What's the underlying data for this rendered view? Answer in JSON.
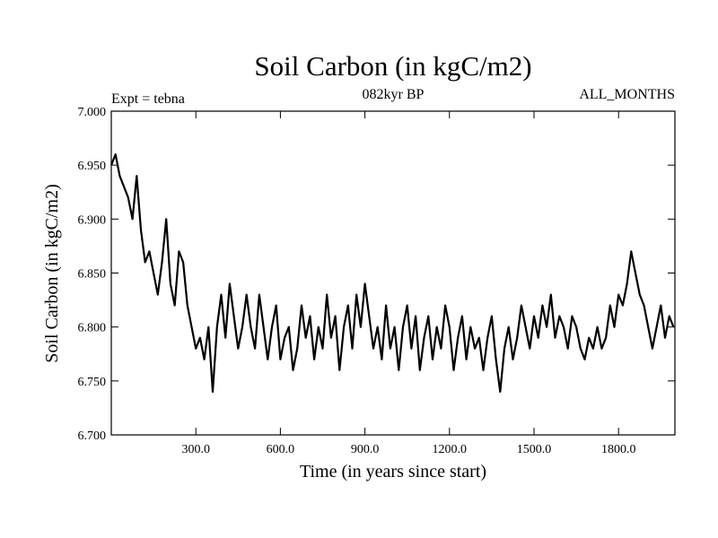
{
  "chart_data": {
    "type": "line",
    "title": "Soil Carbon (in kgC/m2)",
    "subtitle_left": "Expt = tebna",
    "subtitle_center": "082kyr BP",
    "subtitle_right": "ALL_MONTHS",
    "xlabel": "Time (in years since start)",
    "ylabel": "Soil Carbon (in kgC/m2)",
    "xlim": [
      0,
      2000
    ],
    "ylim": [
      6.7,
      7.0
    ],
    "x_ticks": [
      300,
      600,
      900,
      1200,
      1500,
      1800
    ],
    "x_tick_labels": [
      "300.0",
      "600.0",
      "900.0",
      "1200.0",
      "1500.0",
      "1800.0"
    ],
    "y_ticks": [
      6.7,
      6.75,
      6.8,
      6.85,
      6.9,
      6.95,
      7.0
    ],
    "y_tick_labels": [
      "6.700",
      "6.750",
      "6.800",
      "6.850",
      "6.900",
      "6.950",
      "7.000"
    ],
    "grid": false,
    "line_color": "#000000",
    "series": [
      {
        "name": "Soil Carbon",
        "x": [
          0,
          15,
          30,
          45,
          60,
          75,
          90,
          105,
          120,
          135,
          150,
          165,
          180,
          195,
          210,
          225,
          240,
          255,
          270,
          285,
          300,
          315,
          330,
          345,
          360,
          375,
          390,
          405,
          420,
          435,
          450,
          465,
          480,
          495,
          510,
          525,
          540,
          555,
          570,
          585,
          600,
          615,
          630,
          645,
          660,
          675,
          690,
          705,
          720,
          735,
          750,
          765,
          780,
          795,
          810,
          825,
          840,
          855,
          870,
          885,
          900,
          915,
          930,
          945,
          960,
          975,
          990,
          1005,
          1020,
          1035,
          1050,
          1065,
          1080,
          1095,
          1110,
          1125,
          1140,
          1155,
          1170,
          1185,
          1200,
          1215,
          1230,
          1245,
          1260,
          1275,
          1290,
          1305,
          1320,
          1335,
          1350,
          1365,
          1380,
          1395,
          1410,
          1425,
          1440,
          1455,
          1470,
          1485,
          1500,
          1515,
          1530,
          1545,
          1560,
          1575,
          1590,
          1605,
          1620,
          1635,
          1650,
          1665,
          1680,
          1695,
          1710,
          1725,
          1740,
          1755,
          1770,
          1785,
          1800,
          1815,
          1830,
          1845,
          1860,
          1875,
          1890,
          1905,
          1920,
          1935,
          1950,
          1965,
          1980,
          1995
        ],
        "values": [
          6.95,
          6.96,
          6.94,
          6.93,
          6.92,
          6.9,
          6.94,
          6.89,
          6.86,
          6.87,
          6.85,
          6.83,
          6.86,
          6.9,
          6.84,
          6.82,
          6.87,
          6.86,
          6.82,
          6.8,
          6.78,
          6.79,
          6.77,
          6.8,
          6.74,
          6.8,
          6.83,
          6.79,
          6.84,
          6.81,
          6.78,
          6.8,
          6.83,
          6.8,
          6.78,
          6.83,
          6.8,
          6.77,
          6.8,
          6.82,
          6.77,
          6.79,
          6.8,
          6.76,
          6.78,
          6.82,
          6.79,
          6.81,
          6.77,
          6.8,
          6.78,
          6.83,
          6.79,
          6.81,
          6.76,
          6.8,
          6.82,
          6.78,
          6.83,
          6.8,
          6.84,
          6.81,
          6.78,
          6.8,
          6.77,
          6.82,
          6.78,
          6.8,
          6.76,
          6.8,
          6.82,
          6.78,
          6.81,
          6.76,
          6.79,
          6.81,
          6.77,
          6.8,
          6.78,
          6.82,
          6.8,
          6.76,
          6.79,
          6.81,
          6.77,
          6.8,
          6.78,
          6.79,
          6.76,
          6.79,
          6.81,
          6.77,
          6.74,
          6.78,
          6.8,
          6.77,
          6.79,
          6.82,
          6.8,
          6.78,
          6.81,
          6.79,
          6.82,
          6.8,
          6.83,
          6.79,
          6.81,
          6.8,
          6.78,
          6.81,
          6.8,
          6.78,
          6.77,
          6.79,
          6.78,
          6.8,
          6.78,
          6.79,
          6.82,
          6.8,
          6.83,
          6.82,
          6.84,
          6.87,
          6.85,
          6.83,
          6.82,
          6.8,
          6.78,
          6.8,
          6.82,
          6.79,
          6.81,
          6.8
        ]
      }
    ]
  }
}
